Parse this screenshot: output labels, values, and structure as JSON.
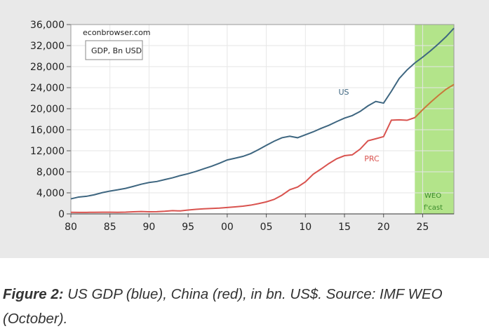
{
  "chart_data": {
    "type": "line",
    "title": "",
    "xlabel": "",
    "ylabel": "",
    "ylim": [
      0,
      36000
    ],
    "xlim": [
      1980,
      2029
    ],
    "y_ticks": [
      0,
      4000,
      8000,
      12000,
      16000,
      20000,
      24000,
      28000,
      32000,
      36000
    ],
    "y_tick_labels": [
      "0",
      "4,000",
      "8,000",
      "12,000",
      "16,000",
      "20,000",
      "24,000",
      "28,000",
      "32,000",
      "36,000"
    ],
    "x_ticks": [
      1980,
      1985,
      1990,
      1995,
      2000,
      2005,
      2010,
      2015,
      2020,
      2025
    ],
    "x_tick_labels": [
      "80",
      "85",
      "90",
      "95",
      "00",
      "05",
      "10",
      "15",
      "20",
      "25"
    ],
    "grid": true,
    "watermark": "econbrowser.com",
    "legend_box": "GDP, Bn USD",
    "forecast_region": {
      "start": 2024,
      "end": 2029,
      "label_line1": "WEO",
      "label_line2": "f'cast",
      "color": "#b3e48a"
    },
    "x": [
      1980,
      1981,
      1982,
      1983,
      1984,
      1985,
      1986,
      1987,
      1988,
      1989,
      1990,
      1991,
      1992,
      1993,
      1994,
      1995,
      1996,
      1997,
      1998,
      1999,
      2000,
      2001,
      2002,
      2003,
      2004,
      2005,
      2006,
      2007,
      2008,
      2009,
      2010,
      2011,
      2012,
      2013,
      2014,
      2015,
      2016,
      2017,
      2018,
      2019,
      2020,
      2021,
      2022,
      2023,
      2024,
      2025,
      2026,
      2027,
      2028,
      2029
    ],
    "series": [
      {
        "name": "US",
        "label": "US",
        "color": "#3e6680",
        "values": [
          2857,
          3207,
          3343,
          3634,
          4037,
          4339,
          4579,
          4855,
          5236,
          5642,
          5963,
          6158,
          6520,
          6858,
          7287,
          7640,
          8073,
          8578,
          9063,
          9631,
          10251,
          10582,
          10929,
          11457,
          12217,
          13039,
          13816,
          14474,
          14770,
          14478,
          15049,
          15600,
          16254,
          16843,
          17551,
          18206,
          18695,
          19477,
          20533,
          21381,
          21060,
          23315,
          25744,
          27361,
          28700,
          29800,
          31000,
          32300,
          33700,
          35300
        ]
      },
      {
        "name": "PRC",
        "label": "PRC",
        "color": "#d9534f",
        "forecast_color": "#c9773a",
        "values": [
          303,
          290,
          285,
          305,
          315,
          310,
          300,
          327,
          408,
          457,
          394,
          415,
          494,
          617,
          564,
          734,
          863,
          961,
          1029,
          1094,
          1211,
          1339,
          1470,
          1660,
          1955,
          2286,
          2752,
          3550,
          4594,
          5101,
          6087,
          7552,
          8532,
          9570,
          10476,
          11062,
          11233,
          12310,
          13895,
          14280,
          14688,
          17820,
          17882,
          17795,
          18300,
          19800,
          21200,
          22500,
          23700,
          24600
        ]
      }
    ]
  },
  "caption": {
    "label": "Figure 2:",
    "text": " US GDP (blue), China (red), in bn. US$. Source: IMF WEO (October)."
  }
}
